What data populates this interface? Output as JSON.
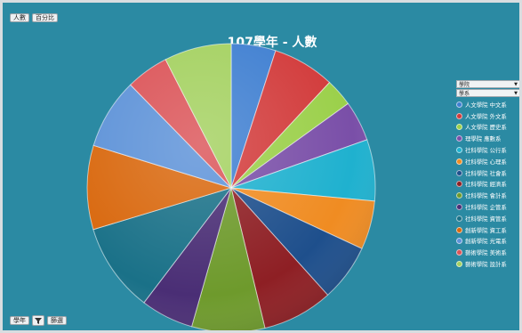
{
  "toolbar": {
    "top_buttons": [
      "人數",
      "百分比"
    ],
    "bottom_buttons": [
      "學年",
      "篩選"
    ]
  },
  "legend_dropdowns": [
    "學院",
    "學系"
  ],
  "chart_data": {
    "type": "pie",
    "title": "107學年 - 人數",
    "categories": [
      "人文學院 中文系",
      "人文學院 外文系",
      "人文學院 歷史系",
      "理學院 應數系",
      "社科學院 公行系",
      "社科學院 心理系",
      "社科學院 社會系",
      "社科學院 經濟系",
      "社科學院 會計系",
      "社科學院 企管系",
      "社科學院 資管系",
      "創新學院 資工系",
      "創新學院 光電系",
      "藝術學院 美術系",
      "藝術學院 設計系"
    ],
    "values": [
      5.3,
      7.4,
      3.3,
      4.8,
      7.3,
      5.8,
      6.8,
      8.4,
      8.7,
      6.3,
      10.6,
      10.0,
      8.4,
      5.1,
      8.0
    ],
    "colors": [
      "#3f7fd1",
      "#d23b3b",
      "#9bd04a",
      "#7a4fa8",
      "#1fb1cf",
      "#f08c22",
      "#1e4f8c",
      "#8e1f24",
      "#6e9a2c",
      "#4a2e75",
      "#1a7188",
      "#d9680e",
      "#5d92d8",
      "#db5458",
      "#a4d160"
    ],
    "legend_position": "right"
  }
}
